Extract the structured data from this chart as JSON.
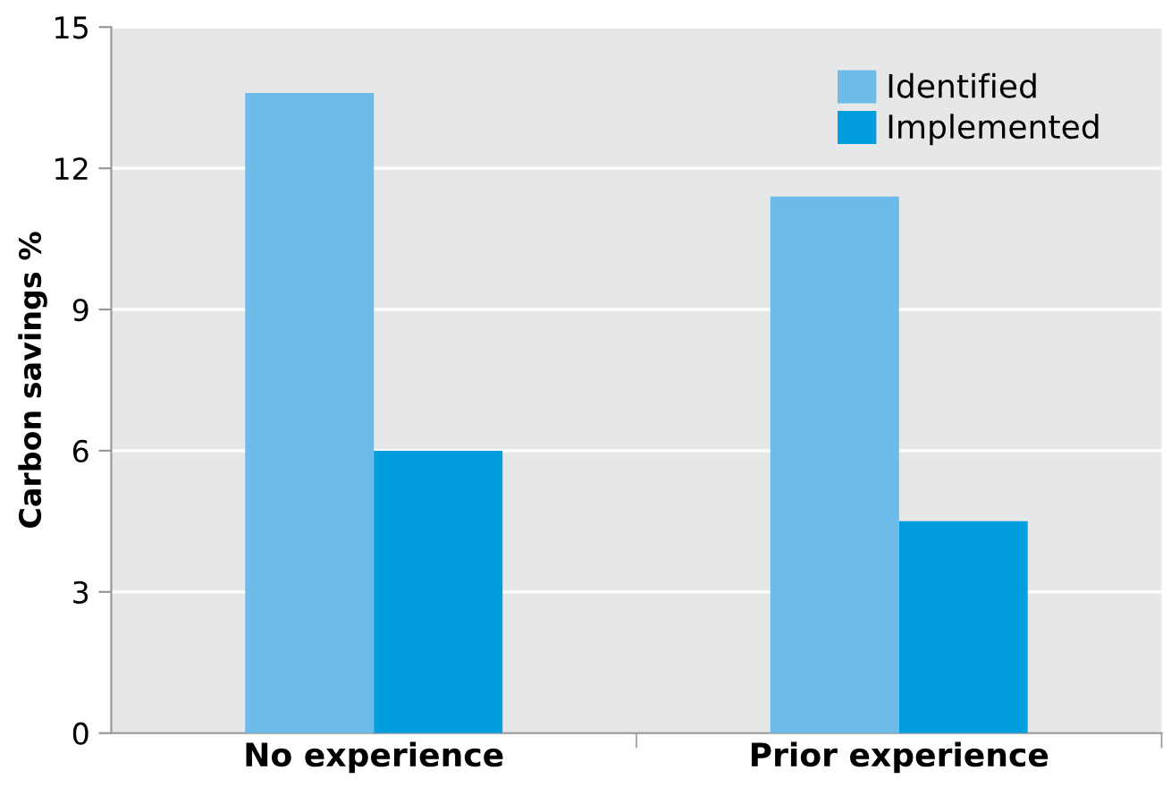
{
  "chart_data": {
    "type": "bar",
    "ylabel": "Carbon savings %",
    "categories": [
      "No experience",
      "Prior experience"
    ],
    "series": [
      {
        "name": "Identified",
        "color": "#6dbbe8",
        "values": [
          13.6,
          11.4
        ]
      },
      {
        "name": "Implemented",
        "color": "#009edf",
        "values": [
          6.0,
          4.5
        ]
      }
    ],
    "ylim": [
      0,
      15
    ],
    "yticks": [
      0,
      3,
      6,
      9,
      12,
      15
    ],
    "grid": "y",
    "legend": "top right"
  }
}
